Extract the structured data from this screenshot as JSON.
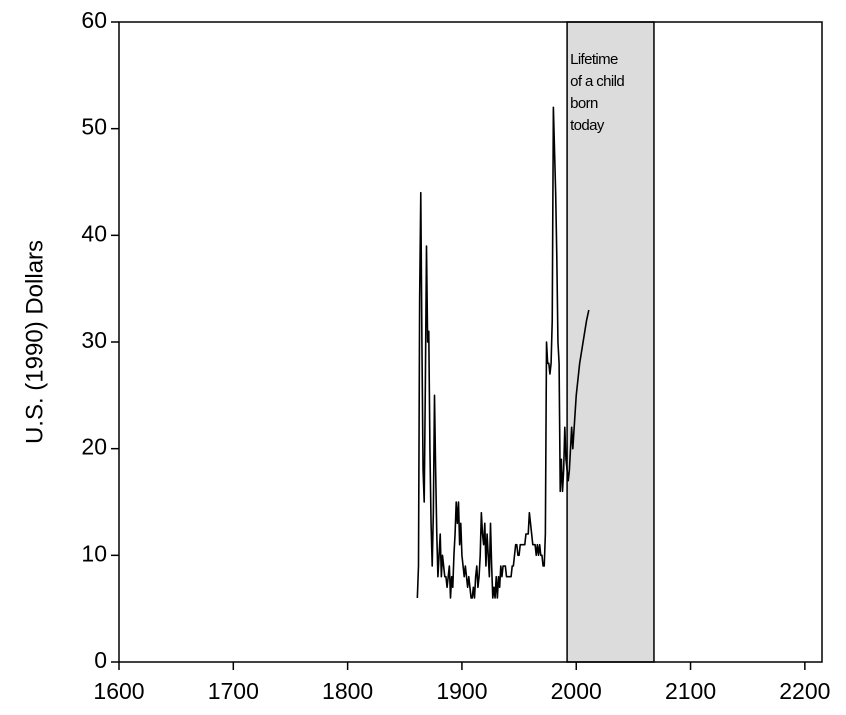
{
  "chart_data": {
    "type": "line",
    "y_label": "U.S. (1990) Dollars",
    "annotation": {
      "lines": [
        "Lifetime",
        "of a child",
        "born",
        "today"
      ],
      "span": [
        1992,
        2068
      ],
      "color": "#dcdcdc"
    },
    "xlim": [
      1600,
      2215
    ],
    "xticks": [
      1600,
      1700,
      1800,
      1900,
      2000,
      2100,
      2200
    ],
    "ylim": [
      0,
      60
    ],
    "yticks": [
      0,
      10,
      20,
      30,
      40,
      50,
      60
    ],
    "series": [
      {
        "color": "#000000",
        "x": [
          1861,
          1862,
          1863,
          1864,
          1865,
          1866,
          1867,
          1868,
          1869,
          1870,
          1871,
          1872,
          1873,
          1874,
          1875,
          1876,
          1877,
          1878,
          1879,
          1880,
          1881,
          1882,
          1883,
          1884,
          1885,
          1886,
          1887,
          1888,
          1889,
          1890,
          1891,
          1892,
          1893,
          1894,
          1895,
          1896,
          1897,
          1898,
          1899,
          1900,
          1901,
          1902,
          1903,
          1904,
          1905,
          1906,
          1907,
          1908,
          1909,
          1910,
          1911,
          1912,
          1913,
          1914,
          1915,
          1916,
          1917,
          1918,
          1919,
          1920,
          1921,
          1922,
          1923,
          1924,
          1925,
          1926,
          1927,
          1928,
          1929,
          1930,
          1931,
          1932,
          1933,
          1934,
          1935,
          1936,
          1937,
          1938,
          1939,
          1940,
          1941,
          1942,
          1943,
          1944,
          1945,
          1946,
          1947,
          1948,
          1949,
          1950,
          1951,
          1952,
          1953,
          1954,
          1955,
          1956,
          1957,
          1958,
          1959,
          1960,
          1961,
          1962,
          1963,
          1964,
          1965,
          1966,
          1967,
          1968,
          1969,
          1970,
          1971,
          1972,
          1973,
          1974,
          1975,
          1976,
          1977,
          1978,
          1979,
          1980,
          1981,
          1982,
          1983,
          1984,
          1985,
          1986,
          1987,
          1988,
          1989,
          1990,
          1991,
          1992,
          1993,
          1994,
          1995,
          1996,
          1997,
          2000,
          2003,
          2006,
          2009,
          2011
        ],
        "values": [
          6,
          9,
          34,
          44,
          30,
          18,
          15,
          26,
          39,
          30,
          31,
          20,
          13,
          9,
          14,
          25,
          18,
          12,
          8,
          10,
          12,
          8,
          10,
          9,
          8,
          8,
          7,
          8,
          9,
          6,
          8,
          7,
          10,
          12,
          15,
          13,
          15,
          11,
          13,
          10,
          9,
          8,
          9,
          8,
          7,
          8,
          7,
          6,
          6,
          7,
          6,
          8,
          9,
          7,
          8,
          10,
          14,
          12,
          11,
          13,
          9,
          12,
          10,
          8,
          13,
          9,
          6,
          7,
          6,
          8,
          6,
          8,
          7,
          9,
          8,
          9,
          9,
          9,
          8,
          8,
          8,
          8,
          8,
          9,
          9,
          10,
          11,
          11,
          10,
          10,
          11,
          11,
          11,
          11,
          11,
          12,
          12,
          12,
          14,
          13,
          12,
          11,
          11,
          11,
          10,
          11,
          10,
          11,
          10,
          10,
          9,
          9,
          12,
          30,
          28,
          28,
          27,
          28,
          32,
          52,
          48,
          44,
          38,
          30,
          28,
          16,
          19,
          16,
          18,
          22,
          19,
          18,
          17,
          18,
          20,
          22,
          20,
          25,
          28,
          30,
          32,
          33
        ]
      }
    ]
  }
}
